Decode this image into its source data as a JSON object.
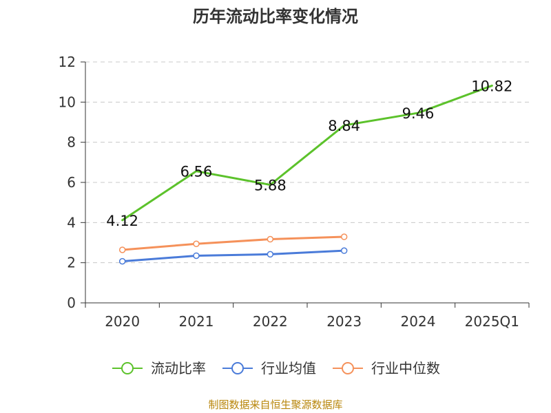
{
  "chart_data": {
    "type": "line",
    "title": "历年流动比率变化情况",
    "xlabel": "",
    "ylabel": "",
    "categories": [
      "2020",
      "2021",
      "2022",
      "2023",
      "2024",
      "2025Q1"
    ],
    "ylim": [
      0,
      12
    ],
    "yticks": [
      "0",
      "2",
      "4",
      "6",
      "8",
      "10",
      "12"
    ],
    "grid": true,
    "legend_position": "bottom",
    "series": [
      {
        "name": "流动比率",
        "values": [
          4.12,
          6.56,
          5.88,
          8.84,
          9.46,
          10.82
        ],
        "value_labels": [
          "4.12",
          "6.56",
          "5.88",
          "8.84",
          "9.46",
          "10.82"
        ],
        "color": "#5cc22b"
      },
      {
        "name": "行业均值",
        "values": [
          2.07,
          2.35,
          2.42,
          2.6,
          null,
          null
        ],
        "color": "#4a7bd9"
      },
      {
        "name": "行业中位数",
        "values": [
          2.64,
          2.94,
          3.17,
          3.29,
          null,
          null
        ],
        "color": "#f5915a"
      }
    ],
    "source": "制图数据来自恒生聚源数据库"
  }
}
